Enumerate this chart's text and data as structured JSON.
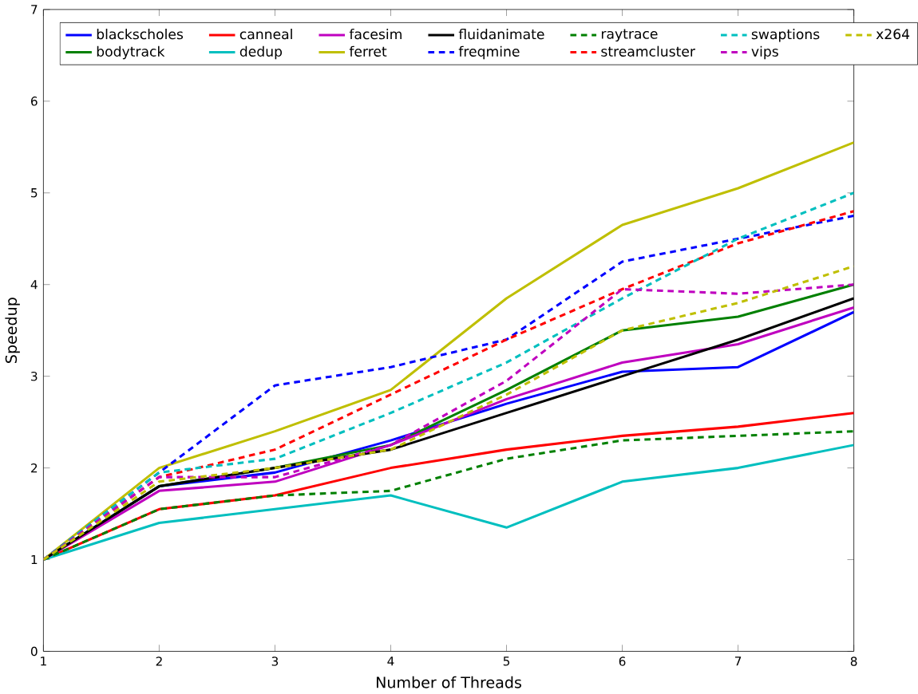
{
  "chart_data": {
    "type": "line",
    "xlabel": "Number of Threads",
    "ylabel": "Speedup",
    "x": [
      1,
      2,
      3,
      4,
      5,
      6,
      7,
      8
    ],
    "xlim": [
      1,
      8
    ],
    "ylim": [
      0,
      7
    ],
    "xticks": [
      1,
      2,
      3,
      4,
      5,
      6,
      7,
      8
    ],
    "yticks": [
      0,
      1,
      2,
      3,
      4,
      5,
      6,
      7
    ],
    "legend": "top left",
    "grid": false,
    "marker": "none",
    "series": [
      {
        "name": "blackscholes",
        "color": "#0000ff",
        "line_style": "solid",
        "values": [
          1,
          1.8,
          1.95,
          2.3,
          2.7,
          3.05,
          3.1,
          3.7
        ]
      },
      {
        "name": "bodytrack",
        "color": "#008000",
        "line_style": "solid",
        "values": [
          1,
          1.8,
          2.0,
          2.25,
          2.85,
          3.5,
          3.65,
          4.0
        ]
      },
      {
        "name": "canneal",
        "color": "#ff0000",
        "line_style": "solid",
        "values": [
          1,
          1.55,
          1.7,
          2.0,
          2.2,
          2.35,
          2.45,
          2.6
        ]
      },
      {
        "name": "dedup",
        "color": "#00bfbf",
        "line_style": "solid",
        "values": [
          1,
          1.4,
          1.55,
          1.7,
          1.35,
          1.85,
          2.0,
          2.25
        ]
      },
      {
        "name": "facesim",
        "color": "#bf00bf",
        "line_style": "solid",
        "values": [
          1,
          1.75,
          1.85,
          2.25,
          2.75,
          3.15,
          3.35,
          3.75
        ]
      },
      {
        "name": "ferret",
        "color": "#bfbf00",
        "line_style": "solid",
        "values": [
          1,
          2.0,
          2.4,
          2.85,
          3.85,
          4.65,
          5.05,
          5.55
        ]
      },
      {
        "name": "fluidanimate",
        "color": "#000000",
        "line_style": "solid",
        "values": [
          1,
          1.8,
          2.0,
          2.2,
          2.6,
          3.0,
          3.4,
          3.85
        ]
      },
      {
        "name": "freqmine",
        "color": "#0000ff",
        "line_style": "dashed",
        "values": [
          1,
          1.95,
          2.9,
          3.1,
          3.4,
          4.25,
          4.5,
          4.75
        ]
      },
      {
        "name": "raytrace",
        "color": "#008000",
        "line_style": "dashed",
        "values": [
          1,
          1.55,
          1.7,
          1.75,
          2.1,
          2.3,
          2.35,
          2.4
        ]
      },
      {
        "name": "streamcluster",
        "color": "#ff0000",
        "line_style": "dashed",
        "values": [
          1,
          1.9,
          2.2,
          2.8,
          3.4,
          3.95,
          4.45,
          4.8
        ]
      },
      {
        "name": "swaptions",
        "color": "#00bfbf",
        "line_style": "dashed",
        "values": [
          1,
          1.95,
          2.1,
          2.6,
          3.15,
          3.85,
          4.5,
          5.0
        ]
      },
      {
        "name": "vips",
        "color": "#bf00bf",
        "line_style": "dashed",
        "values": [
          1,
          1.9,
          1.9,
          2.25,
          2.95,
          3.95,
          3.9,
          4.0
        ]
      },
      {
        "name": "x264",
        "color": "#bfbf00",
        "line_style": "dashed",
        "values": [
          1,
          1.85,
          2.0,
          2.2,
          2.8,
          3.5,
          3.8,
          4.2
        ]
      }
    ]
  }
}
